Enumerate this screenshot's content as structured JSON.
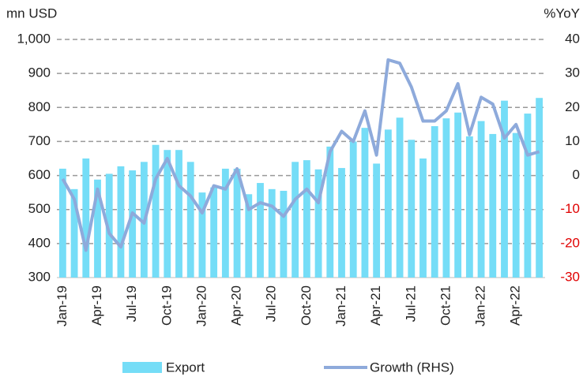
{
  "chart_data": {
    "type": "bar_line",
    "y_label": "mn USD",
    "y2_label": "%YoY",
    "categories": [
      "Jan-19",
      null,
      null,
      "Apr-19",
      null,
      null,
      "Jul-19",
      null,
      null,
      "Oct-19",
      null,
      null,
      "Jan-20",
      null,
      null,
      "Apr-20",
      null,
      null,
      "Jul-20",
      null,
      null,
      "Oct-20",
      null,
      null,
      "Jan-21",
      null,
      null,
      "Apr-21",
      null,
      null,
      "Jul-21",
      null,
      null,
      "Oct-21",
      null,
      null,
      "Jan-22",
      null,
      null,
      "Apr-22",
      null,
      null
    ],
    "series": [
      {
        "name": "Export",
        "kind": "bar",
        "color": "#75ddf7",
        "values": [
          620,
          560,
          650,
          588,
          605,
          627,
          615,
          640,
          690,
          675,
          675,
          640,
          550,
          565,
          620,
          620,
          545,
          578,
          560,
          555,
          640,
          645,
          618,
          685,
          622,
          700,
          740,
          635,
          735,
          770,
          705,
          650,
          745,
          768,
          785,
          715,
          760,
          722,
          820,
          725,
          782,
          828
        ]
      },
      {
        "name": "Growth (RHS)",
        "kind": "line",
        "axis": "y2",
        "color": "#8eaadb",
        "values": [
          -1,
          -7,
          -22,
          -4,
          -17,
          -21,
          -11,
          -14,
          -1,
          5,
          -3,
          -6,
          -11,
          -3,
          -4,
          2,
          -10,
          -8,
          -9,
          -12,
          -7,
          -4,
          -8,
          7,
          13,
          10,
          19,
          6,
          34,
          33,
          26,
          16,
          16,
          19,
          27,
          12,
          23,
          21,
          11,
          15,
          6,
          7
        ]
      }
    ],
    "ylim": [
      300,
      1000
    ],
    "yticks": [
      300,
      400,
      500,
      600,
      700,
      800,
      900,
      {
        "value": 1000,
        "label": "1,000"
      }
    ],
    "y2lim": [
      -30,
      40
    ],
    "y2ticks": [
      -30,
      -20,
      -10,
      0,
      10,
      20,
      30,
      40
    ],
    "negative_tick_color": "#e00000",
    "grid": true,
    "legend": "bottom"
  }
}
